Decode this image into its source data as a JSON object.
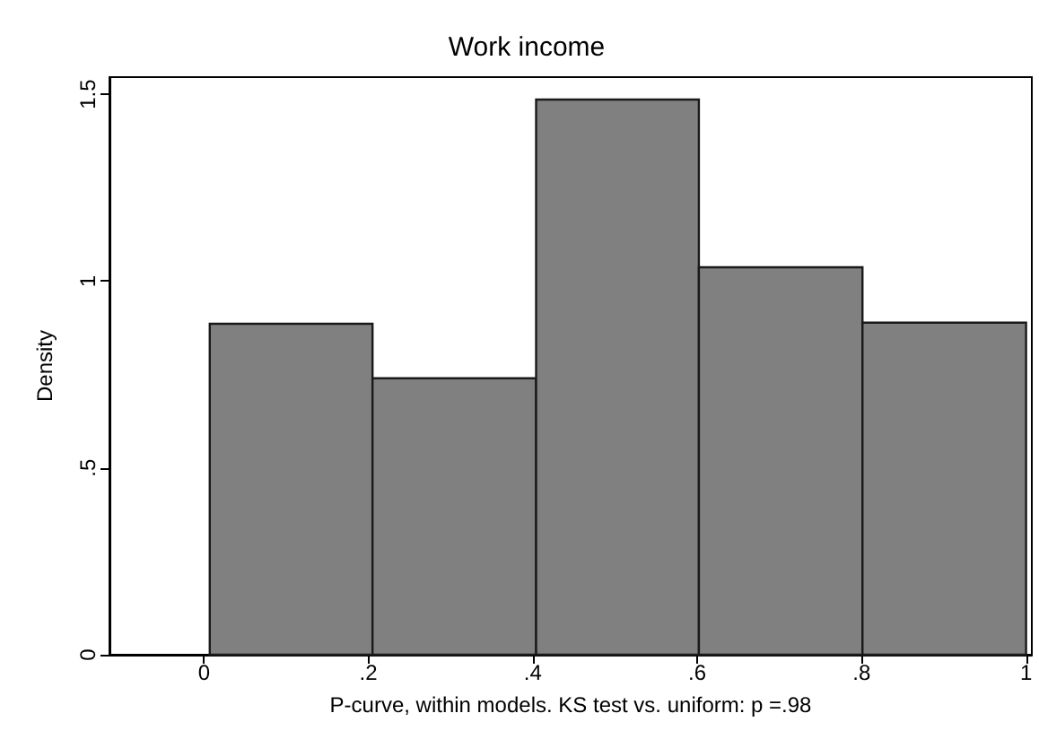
{
  "chart_data": {
    "type": "histogram",
    "title": "Work income",
    "xlabel": "P-curve, within models. KS test vs. uniform: p =.98",
    "ylabel": "Density",
    "bins": [
      0.007,
      0.205,
      0.404,
      0.602,
      0.801,
      1.0
    ],
    "values": [
      0.886,
      0.74,
      1.486,
      1.037,
      0.889
    ],
    "color": "#808080",
    "xlim": [
      -0.115,
      1.007
    ],
    "ylim": [
      0,
      1.546
    ],
    "xticks": [
      {
        "value": 0,
        "label": "0"
      },
      {
        "value": 0.2,
        "label": ".2"
      },
      {
        "value": 0.4,
        "label": ".4"
      },
      {
        "value": 0.6,
        "label": ".6"
      },
      {
        "value": 0.8,
        "label": ".8"
      },
      {
        "value": 1,
        "label": "1"
      }
    ],
    "yticks": [
      {
        "value": 0,
        "label": "0"
      },
      {
        "value": 0.5,
        "label": ".5"
      },
      {
        "value": 1,
        "label": "1"
      },
      {
        "value": 1.5,
        "label": "1.5"
      }
    ],
    "grid": false
  }
}
